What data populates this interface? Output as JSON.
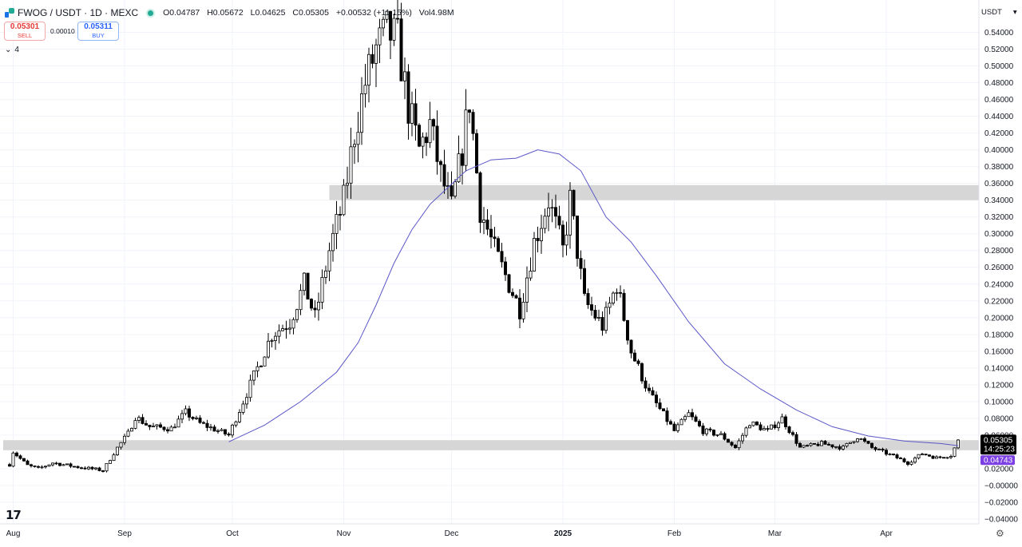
{
  "header": {
    "symbol": "FWOG / USDT · 1D · MEXC",
    "ohlc": {
      "open_label": "O",
      "open": "0.04787",
      "high_label": "H",
      "high": "0.05672",
      "low_label": "L",
      "low": "0.04625",
      "close_label": "C",
      "close": "0.05305",
      "change": "+0.00532 (+11.15%)",
      "volume_label": "Vol",
      "volume": "4.98M"
    },
    "sell": {
      "price": "0.05301",
      "label": "SELL"
    },
    "buy": {
      "price": "0.05311",
      "label": "BUY"
    },
    "spread": "0.00010",
    "indicator_count": "4",
    "currency": "USDT"
  },
  "price_scale": {
    "ticks": [
      "0.54000",
      "0.52000",
      "0.50000",
      "0.48000",
      "0.46000",
      "0.44000",
      "0.42000",
      "0.40000",
      "0.38000",
      "0.36000",
      "0.34000",
      "0.32000",
      "0.30000",
      "0.28000",
      "0.26000",
      "0.24000",
      "0.22000",
      "0.20000",
      "0.18000",
      "0.16000",
      "0.14000",
      "0.12000",
      "0.10000",
      "0.08000",
      "0.06000",
      "0.02000",
      "−0.00000",
      "−0.02000",
      "−0.04000"
    ],
    "last_price_label": "0.05305",
    "countdown": "14:25:23",
    "ma_value_label": "0.04743"
  },
  "time_scale": {
    "labels": [
      {
        "text": "Aug",
        "date": "2024-08-01"
      },
      {
        "text": "Sep",
        "date": "2024-09-01"
      },
      {
        "text": "Oct",
        "date": "2024-10-01"
      },
      {
        "text": "Nov",
        "date": "2024-11-01"
      },
      {
        "text": "Dec",
        "date": "2024-12-01"
      },
      {
        "text": "2025",
        "date": "2025-01-01",
        "bold": true
      },
      {
        "text": "Feb",
        "date": "2025-02-01"
      },
      {
        "text": "Mar",
        "date": "2025-03-01"
      },
      {
        "text": "Apr",
        "date": "2025-04-01"
      }
    ]
  },
  "colors": {
    "up_body": "#ffffff",
    "down_body": "#000000",
    "wick": "#000000",
    "ma_line": "#5b57c7",
    "zone": "#d4d4d4",
    "last_price_bg": "#000000",
    "ma_label_bg": "#7b3fe4",
    "sell": "#e53935",
    "buy": "#2962ff"
  },
  "chart_data": {
    "type": "candlestick",
    "title": "FWOG / USDT · 1D · MEXC",
    "y_unit": "USDT",
    "ylim": [
      -0.04,
      0.55
    ],
    "x_range": [
      "2024-07-31",
      "2025-04-21"
    ],
    "grid": true,
    "series": [
      {
        "name": "FWOG / USDT",
        "kind": "ohlc_keypoints",
        "points": [
          {
            "date": "2024-07-31",
            "close": 0.025
          },
          {
            "date": "2024-08-01",
            "close": 0.04
          },
          {
            "date": "2024-08-05",
            "close": 0.024
          },
          {
            "date": "2024-08-08",
            "close": 0.02
          },
          {
            "date": "2024-08-12",
            "close": 0.027
          },
          {
            "date": "2024-08-19",
            "close": 0.022
          },
          {
            "date": "2024-08-26",
            "close": 0.018
          },
          {
            "date": "2024-08-30",
            "close": 0.045
          },
          {
            "date": "2024-09-02",
            "close": 0.062
          },
          {
            "date": "2024-09-04",
            "close": 0.082
          },
          {
            "date": "2024-09-08",
            "close": 0.07
          },
          {
            "date": "2024-09-14",
            "close": 0.068
          },
          {
            "date": "2024-09-18",
            "close": 0.087
          },
          {
            "date": "2024-09-22",
            "close": 0.074
          },
          {
            "date": "2024-09-26",
            "close": 0.067
          },
          {
            "date": "2024-09-30",
            "close": 0.06
          },
          {
            "date": "2024-10-02",
            "close": 0.08
          },
          {
            "date": "2024-10-05",
            "close": 0.11
          },
          {
            "date": "2024-10-08",
            "close": 0.14
          },
          {
            "date": "2024-10-12",
            "close": 0.18
          },
          {
            "date": "2024-10-17",
            "close": 0.195
          },
          {
            "date": "2024-10-21",
            "close": 0.24
          },
          {
            "date": "2024-10-24",
            "close": 0.2
          },
          {
            "date": "2024-10-28",
            "close": 0.28
          },
          {
            "date": "2024-11-01",
            "close": 0.34
          },
          {
            "date": "2024-11-04",
            "close": 0.42
          },
          {
            "date": "2024-11-07",
            "close": 0.48
          },
          {
            "date": "2024-11-10",
            "close": 0.52
          },
          {
            "date": "2024-11-13",
            "close": 0.54
          },
          {
            "date": "2024-11-16",
            "close": 0.53
          },
          {
            "date": "2024-11-19",
            "close": 0.45
          },
          {
            "date": "2024-11-22",
            "close": 0.4
          },
          {
            "date": "2024-11-25",
            "close": 0.43
          },
          {
            "date": "2024-11-28",
            "close": 0.37
          },
          {
            "date": "2024-12-01",
            "close": 0.33
          },
          {
            "date": "2024-12-04",
            "close": 0.4
          },
          {
            "date": "2024-12-06",
            "close": 0.46
          },
          {
            "date": "2024-12-09",
            "close": 0.33
          },
          {
            "date": "2024-12-13",
            "close": 0.28
          },
          {
            "date": "2024-12-17",
            "close": 0.24
          },
          {
            "date": "2024-12-20",
            "close": 0.21
          },
          {
            "date": "2024-12-24",
            "close": 0.29
          },
          {
            "date": "2024-12-28",
            "close": 0.34
          },
          {
            "date": "2025-01-01",
            "close": 0.28
          },
          {
            "date": "2025-01-03",
            "close": 0.34
          },
          {
            "date": "2025-01-07",
            "close": 0.22
          },
          {
            "date": "2025-01-12",
            "close": 0.19
          },
          {
            "date": "2025-01-16",
            "close": 0.24
          },
          {
            "date": "2025-01-20",
            "close": 0.16
          },
          {
            "date": "2025-01-25",
            "close": 0.11
          },
          {
            "date": "2025-02-01",
            "close": 0.065
          },
          {
            "date": "2025-02-05",
            "close": 0.085
          },
          {
            "date": "2025-02-09",
            "close": 0.065
          },
          {
            "date": "2025-02-14",
            "close": 0.06
          },
          {
            "date": "2025-02-18",
            "close": 0.045
          },
          {
            "date": "2025-02-22",
            "close": 0.075
          },
          {
            "date": "2025-02-27",
            "close": 0.065
          },
          {
            "date": "2025-03-03",
            "close": 0.08
          },
          {
            "date": "2025-03-08",
            "close": 0.045
          },
          {
            "date": "2025-03-14",
            "close": 0.05
          },
          {
            "date": "2025-03-20",
            "close": 0.045
          },
          {
            "date": "2025-03-24",
            "close": 0.058
          },
          {
            "date": "2025-03-28",
            "close": 0.045
          },
          {
            "date": "2025-04-03",
            "close": 0.035
          },
          {
            "date": "2025-04-07",
            "close": 0.027
          },
          {
            "date": "2025-04-11",
            "close": 0.038
          },
          {
            "date": "2025-04-15",
            "close": 0.033
          },
          {
            "date": "2025-04-19",
            "close": 0.036
          },
          {
            "date": "2025-04-21",
            "close": 0.05305
          }
        ]
      },
      {
        "name": "MA",
        "kind": "line",
        "points": [
          {
            "date": "2024-09-30",
            "value": 0.052
          },
          {
            "date": "2024-10-10",
            "value": 0.072
          },
          {
            "date": "2024-10-20",
            "value": 0.1
          },
          {
            "date": "2024-10-30",
            "value": 0.135
          },
          {
            "date": "2024-11-05",
            "value": 0.17
          },
          {
            "date": "2024-11-10",
            "value": 0.215
          },
          {
            "date": "2024-11-15",
            "value": 0.265
          },
          {
            "date": "2024-11-20",
            "value": 0.305
          },
          {
            "date": "2024-11-25",
            "value": 0.335
          },
          {
            "date": "2024-11-30",
            "value": 0.355
          },
          {
            "date": "2024-12-05",
            "value": 0.375
          },
          {
            "date": "2024-12-12",
            "value": 0.388
          },
          {
            "date": "2024-12-19",
            "value": 0.39
          },
          {
            "date": "2024-12-25",
            "value": 0.4
          },
          {
            "date": "2024-12-31",
            "value": 0.395
          },
          {
            "date": "2025-01-06",
            "value": 0.375
          },
          {
            "date": "2025-01-13",
            "value": 0.32
          },
          {
            "date": "2025-01-20",
            "value": 0.29
          },
          {
            "date": "2025-01-27",
            "value": 0.25
          },
          {
            "date": "2025-02-05",
            "value": 0.195
          },
          {
            "date": "2025-02-15",
            "value": 0.145
          },
          {
            "date": "2025-02-25",
            "value": 0.115
          },
          {
            "date": "2025-03-07",
            "value": 0.09
          },
          {
            "date": "2025-03-17",
            "value": 0.07
          },
          {
            "date": "2025-03-27",
            "value": 0.059
          },
          {
            "date": "2025-04-06",
            "value": 0.053
          },
          {
            "date": "2025-04-16",
            "value": 0.05
          },
          {
            "date": "2025-04-21",
            "value": 0.04743
          }
        ]
      }
    ],
    "zones": [
      {
        "name": "resistance",
        "from_date": "2024-10-28",
        "to_date": "2025-04-21",
        "y_low": 0.34,
        "y_high": 0.358
      },
      {
        "name": "support",
        "from_date": "2024-07-31",
        "to_date": "2025-04-21",
        "y_low": 0.042,
        "y_high": 0.054
      }
    ]
  }
}
